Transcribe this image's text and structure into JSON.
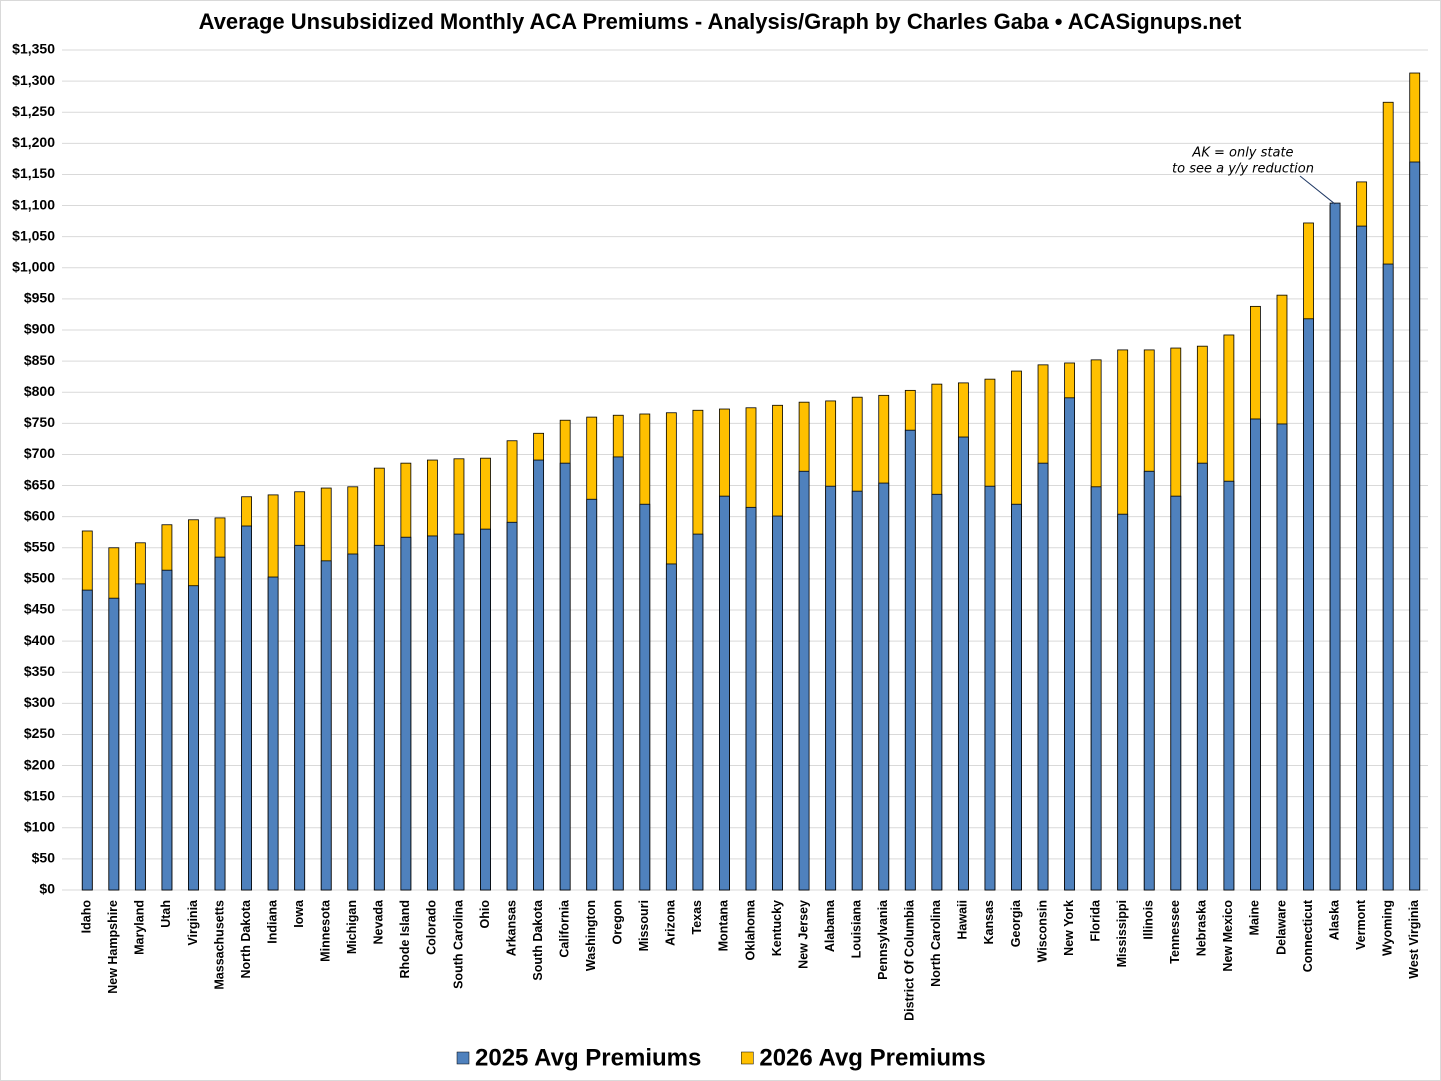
{
  "chart_data": {
    "type": "overlap_bar",
    "title": "Average Unsubsidized Monthly ACA Premiums - Analysis/Graph by Charles Gaba • ACASignups.net",
    "annotation": [
      "AK = only state",
      "to see a y/y reduction"
    ],
    "categories": [
      "Idaho",
      "New Hampshire",
      "Maryland",
      "Utah",
      "Virginia",
      "Massachusetts",
      "North Dakota",
      "Indiana",
      "Iowa",
      "Minnesota",
      "Michigan",
      "Nevada",
      "Rhode Island",
      "Colorado",
      "South Carolina",
      "Ohio",
      "Arkansas",
      "South Dakota",
      "California",
      "Washington",
      "Oregon",
      "Missouri",
      "Arizona",
      "Texas",
      "Montana",
      "Oklahoma",
      "Kentucky",
      "New Jersey",
      "Alabama",
      "Louisiana",
      "Pennsylvania",
      "District Of Columbia",
      "North Carolina",
      "Hawaii",
      "Kansas",
      "Georgia",
      "Wisconsin",
      "New York",
      "Florida",
      "Mississippi",
      "Illinois",
      "Tennessee",
      "Nebraska",
      "New Mexico",
      "Maine",
      "Delaware",
      "Connecticut",
      "Alaska",
      "Vermont",
      "Wyoming",
      "West Virginia"
    ],
    "series": [
      {
        "name": "2026 Avg Premiums",
        "color": "#ffc000",
        "values": [
          577,
          550,
          558,
          587,
          595,
          598,
          632,
          635,
          640,
          646,
          648,
          678,
          686,
          691,
          693,
          694,
          722,
          734,
          755,
          760,
          763,
          765,
          767,
          771,
          773,
          775,
          779,
          784,
          786,
          792,
          795,
          803,
          813,
          815,
          821,
          834,
          844,
          847,
          852,
          868,
          868,
          871,
          874,
          892,
          938,
          956,
          1072,
          1100,
          1138,
          1266,
          1313
        ]
      },
      {
        "name": "2025 Avg Premiums",
        "color": "#4f81bd",
        "values": [
          482,
          469,
          492,
          514,
          489,
          535,
          585,
          503,
          554,
          529,
          540,
          554,
          567,
          569,
          572,
          580,
          591,
          691,
          686,
          628,
          696,
          620,
          524,
          572,
          633,
          615,
          601,
          673,
          649,
          641,
          654,
          739,
          636,
          728,
          649,
          620,
          686,
          791,
          648,
          604,
          673,
          633,
          686,
          657,
          757,
          749,
          918,
          1104,
          1067,
          1006,
          1170
        ]
      }
    ],
    "legend_order": [
      1,
      0
    ],
    "ylim": [
      0,
      1350
    ],
    "yticks": [
      {
        "value": 0,
        "label": "$0"
      },
      {
        "value": 50,
        "label": "$50"
      },
      {
        "value": 100,
        "label": "$100"
      },
      {
        "value": 150,
        "label": "$150"
      },
      {
        "value": 200,
        "label": "$200"
      },
      {
        "value": 250,
        "label": "$250"
      },
      {
        "value": 300,
        "label": "$300"
      },
      {
        "value": 350,
        "label": "$350"
      },
      {
        "value": 400,
        "label": "$400"
      },
      {
        "value": 450,
        "label": "$450"
      },
      {
        "value": 500,
        "label": "$500"
      },
      {
        "value": 550,
        "label": "$550"
      },
      {
        "value": 600,
        "label": "$600"
      },
      {
        "value": 650,
        "label": "$650"
      },
      {
        "value": 700,
        "label": "$700"
      },
      {
        "value": 750,
        "label": "$750"
      },
      {
        "value": 800,
        "label": "$800"
      },
      {
        "value": 850,
        "label": "$850"
      },
      {
        "value": 900,
        "label": "$900"
      },
      {
        "value": 950,
        "label": "$950"
      },
      {
        "value": 1000,
        "label": "$1,000"
      },
      {
        "value": 1050,
        "label": "$1,050"
      },
      {
        "value": 1100,
        "label": "$1,100"
      },
      {
        "value": 1150,
        "label": "$1,150"
      },
      {
        "value": 1200,
        "label": "$1,200"
      },
      {
        "value": 1250,
        "label": "$1,250"
      },
      {
        "value": 1300,
        "label": "$1,300"
      },
      {
        "value": 1350,
        "label": "$1,350"
      }
    ],
    "grid": true
  }
}
